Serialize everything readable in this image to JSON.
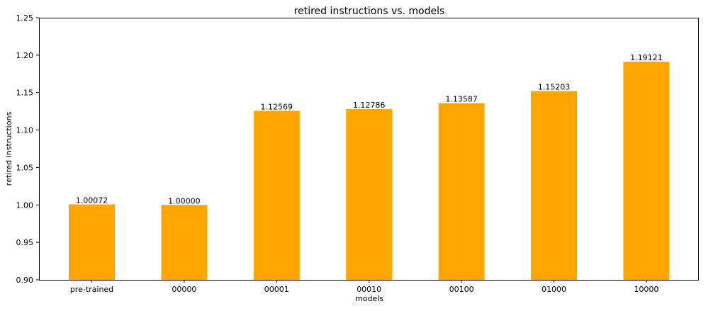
{
  "chart_data": {
    "type": "bar",
    "title": "retired instructions vs. models",
    "xlabel": "models",
    "ylabel": "retired instructions",
    "categories": [
      "pre-trained",
      "00000",
      "00001",
      "00010",
      "00100",
      "01000",
      "10000"
    ],
    "values": [
      1.00072,
      1.0,
      1.12569,
      1.12786,
      1.13587,
      1.15203,
      1.19121
    ],
    "value_labels": [
      "1.00072",
      "1.00000",
      "1.12569",
      "1.12786",
      "1.13587",
      "1.15203",
      "1.19121"
    ],
    "ylim": [
      0.9,
      1.25
    ],
    "yticks": [
      0.9,
      0.95,
      1.0,
      1.05,
      1.1,
      1.15,
      1.2,
      1.25
    ],
    "ytick_labels": [
      "0.90",
      "0.95",
      "1.00",
      "1.05",
      "1.10",
      "1.15",
      "1.20",
      "1.25"
    ],
    "bar_color": "#ffa500",
    "grid": false,
    "legend": false
  }
}
